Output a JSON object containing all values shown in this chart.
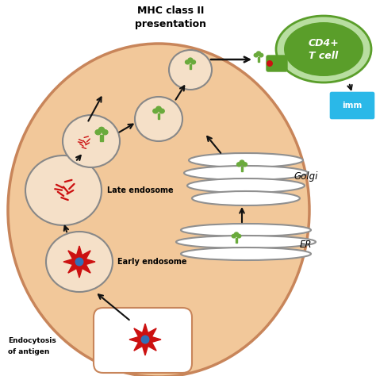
{
  "bg_color": "#ffffff",
  "cell_color": "#f2c89a",
  "cell_edge_color": "#c8855a",
  "cd4_label": "CD4+\nT cell",
  "cd4_color": "#5a9e2a",
  "cd4_light": "#b8dea0",
  "golgi_label": "Golgi",
  "er_label": "ER",
  "late_endosome_label": "Late endosome",
  "early_endosome_label": "Early endosome",
  "endocytosis_line1": "Endocytosis",
  "endocytosis_line2": "of antigen",
  "imm_label": "imm",
  "imm_color": "#2ab8e8",
  "vesicle_fill": "#f5e0c8",
  "vesicle_edge": "#888888",
  "arrow_color": "#111111",
  "mhc_color": "#6aaa3c",
  "red_antigen": "#cc1111",
  "blue_center": "#3070b8",
  "title_text": "MHC class II\npresentation"
}
